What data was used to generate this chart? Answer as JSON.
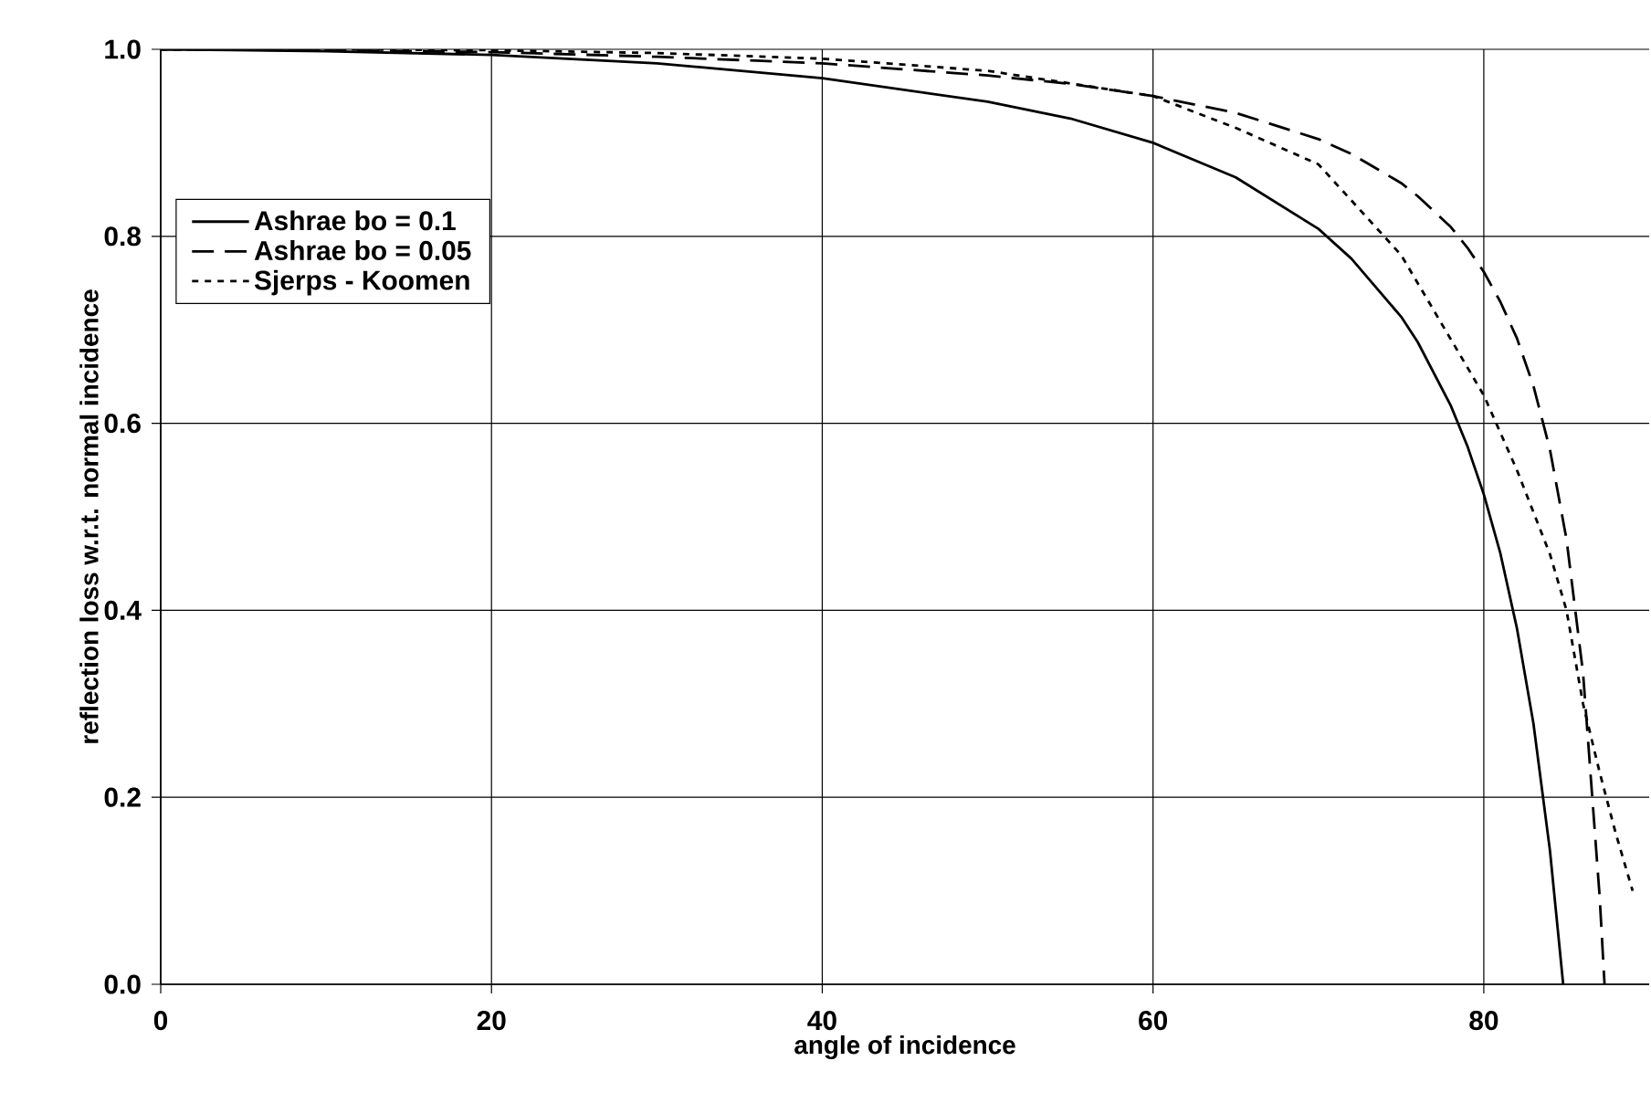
{
  "chart_data": {
    "type": "line",
    "xlabel": "angle of incidence",
    "ylabel": "reflection loss w.r.t. normal incidence",
    "xlim": [
      0,
      90
    ],
    "ylim": [
      0,
      1.0
    ],
    "xticks": [
      0,
      20,
      40,
      60,
      80
    ],
    "yticks": [
      {
        "value": 0,
        "label": "0.0"
      },
      {
        "value": 0.2,
        "label": "0.2"
      },
      {
        "value": 0.4,
        "label": "0.4"
      },
      {
        "value": 0.6,
        "label": "0.6"
      },
      {
        "value": 0.8,
        "label": "0.8"
      },
      {
        "value": 1.0,
        "label": "1.0"
      }
    ],
    "grid": true,
    "legend": "left",
    "marker": "none",
    "series": [
      {
        "name": "Ashrae bo = 0.1",
        "color": "#000000",
        "line_style": "solid",
        "x": [
          0,
          10,
          20,
          30,
          40,
          50,
          55,
          60,
          65,
          70,
          72,
          75,
          76,
          78,
          79,
          80,
          81,
          82,
          83,
          84,
          84.8
        ],
        "values": [
          1,
          0.998,
          0.994,
          0.985,
          0.969,
          0.944,
          0.926,
          0.9,
          0.863,
          0.808,
          0.776,
          0.714,
          0.687,
          0.619,
          0.576,
          0.524,
          0.461,
          0.381,
          0.279,
          0.143,
          0
        ]
      },
      {
        "name": "Ashrae bo = 0.05",
        "color": "#000000",
        "line_style": "dashed",
        "x": [
          0,
          10,
          20,
          30,
          40,
          50,
          55,
          60,
          65,
          70,
          72,
          75,
          76,
          78,
          79,
          80,
          81,
          82,
          83,
          84,
          85,
          86,
          87,
          87.3
        ],
        "values": [
          1,
          0.999,
          0.997,
          0.992,
          0.985,
          0.972,
          0.963,
          0.95,
          0.932,
          0.904,
          0.888,
          0.857,
          0.843,
          0.81,
          0.788,
          0.762,
          0.73,
          0.691,
          0.64,
          0.572,
          0.476,
          0.333,
          0.095,
          0
        ]
      },
      {
        "name": "Sjerps - Koomen",
        "color": "#000000",
        "line_style": "dotted",
        "x": [
          0,
          10,
          20,
          30,
          40,
          50,
          60,
          65,
          70,
          75,
          78,
          80,
          82,
          84,
          85,
          86,
          87,
          88,
          89
        ],
        "values": [
          1,
          1,
          0.999,
          0.996,
          0.99,
          0.977,
          0.95,
          0.916,
          0.877,
          0.78,
          0.69,
          0.63,
          0.55,
          0.46,
          0.4,
          0.3,
          0.227,
          0.16,
          0.1
        ]
      }
    ]
  }
}
